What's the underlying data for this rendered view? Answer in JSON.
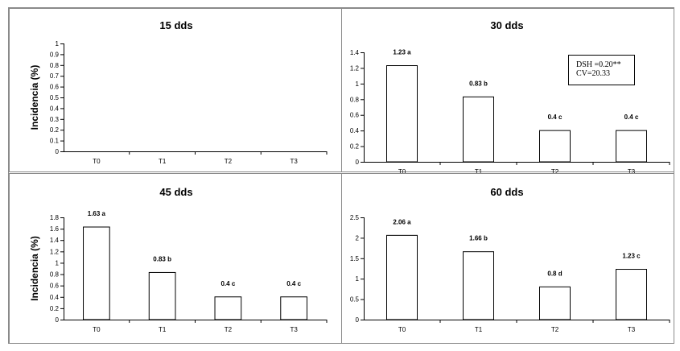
{
  "chart_data": [
    {
      "type": "bar",
      "title": "15 dds",
      "ylabel": "Incidencia (%)",
      "categories": [
        "T0",
        "T1",
        "T2",
        "T3"
      ],
      "values": [
        0,
        0,
        0,
        0
      ],
      "data_labels": [
        "",
        "",
        "",
        ""
      ],
      "yticks": [
        "0",
        "0.1",
        "0.2",
        "0.3",
        "0.4",
        "0.5",
        "0.6",
        "0.7",
        "0.8",
        "0.9",
        "1"
      ],
      "ylim": [
        0,
        1
      ],
      "annotation": []
    },
    {
      "type": "bar",
      "title": "30 dds",
      "ylabel": "",
      "categories": [
        "T0",
        "T1",
        "T2",
        "T3"
      ],
      "values": [
        1.23,
        0.83,
        0.4,
        0.4
      ],
      "data_labels": [
        "1.23 a",
        "0.83 b",
        "0.4 c",
        "0.4 c"
      ],
      "yticks": [
        "0",
        "0.2",
        "0.4",
        "0.6",
        "0.8",
        "1",
        "1.2",
        "1.4"
      ],
      "ylim": [
        0,
        1.4
      ],
      "annotation": [
        "DSH =0.20**",
        "CV=20.33"
      ]
    },
    {
      "type": "bar",
      "title": "45 dds",
      "ylabel": "Incidencia (%)",
      "categories": [
        "T0",
        "T1",
        "T2",
        "T3"
      ],
      "values": [
        1.63,
        0.83,
        0.4,
        0.4
      ],
      "data_labels": [
        "1.63 a",
        "0.83 b",
        "0.4 c",
        "0.4 c"
      ],
      "yticks": [
        "0",
        "0.2",
        "0.4",
        "0.6",
        "0.8",
        "1",
        "1.2",
        "1.4",
        "1.6",
        "1.8"
      ],
      "ylim": [
        0,
        1.8
      ],
      "annotation": []
    },
    {
      "type": "bar",
      "title": "60 dds",
      "ylabel": "",
      "categories": [
        "T0",
        "T1",
        "T2",
        "T3"
      ],
      "values": [
        2.06,
        1.66,
        0.8,
        1.23
      ],
      "data_labels": [
        "2.06 a",
        "1.66 b",
        "0.8 d",
        "1.23 c"
      ],
      "yticks": [
        "0",
        "0.5",
        "1",
        "1.5",
        "2",
        "2.5"
      ],
      "ylim": [
        0,
        2.5
      ],
      "annotation": []
    }
  ]
}
